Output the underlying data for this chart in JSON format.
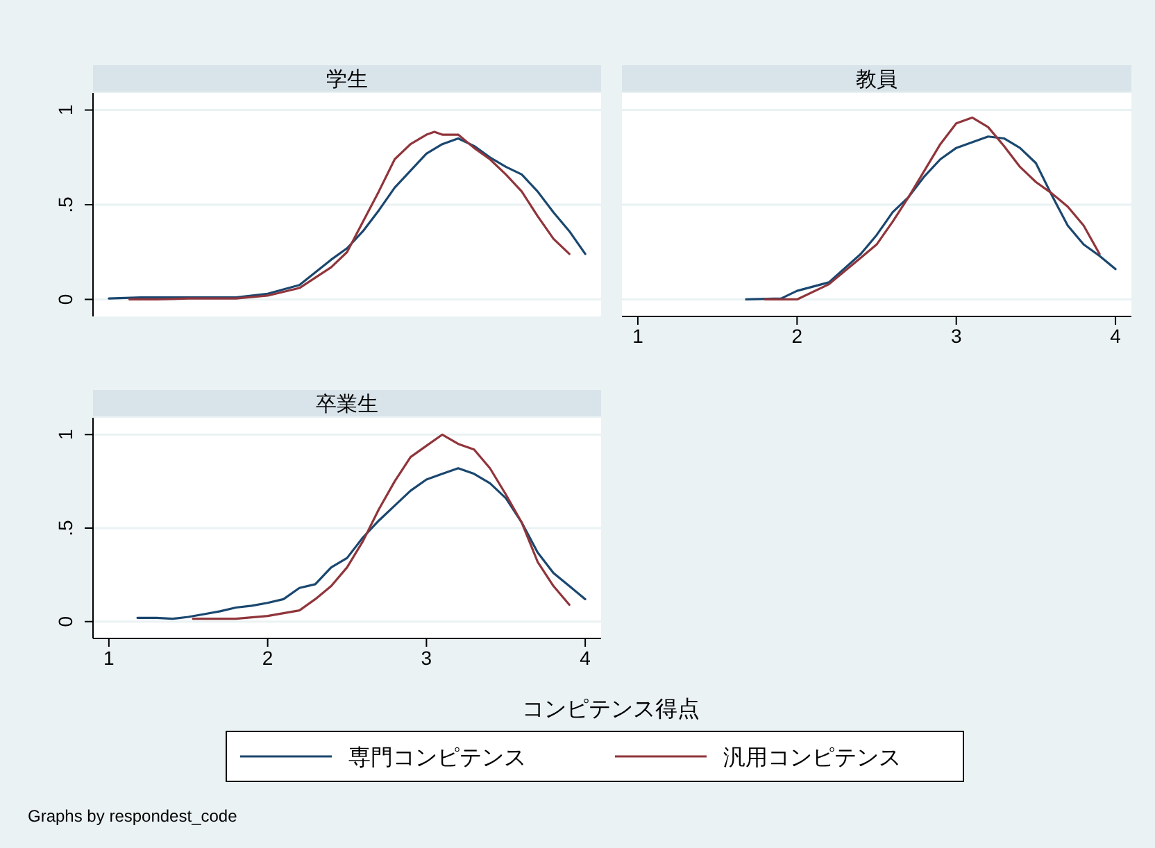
{
  "chart_data": [
    {
      "type": "line",
      "title": "学生",
      "xlim": [
        0.9,
        4.1
      ],
      "xticks": [
        1,
        2,
        3,
        4
      ],
      "ylim": [
        -0.09,
        1.09
      ],
      "yticks": [
        0,
        {
          "value": 0.5,
          "label": ".5"
        },
        1
      ],
      "grid": "y",
      "tick_labels": "y",
      "series": [
        {
          "color": "#1a476f",
          "x": [
            1.0,
            1.2,
            1.5,
            1.8,
            2.0,
            2.2,
            2.4,
            2.5,
            2.6,
            2.7,
            2.8,
            2.9,
            3.0,
            3.1,
            3.2,
            3.3,
            3.4,
            3.5,
            3.6,
            3.7,
            3.8,
            3.9,
            4.0
          ],
          "values": [
            0.005,
            0.01,
            0.01,
            0.01,
            0.03,
            0.076,
            0.21,
            0.27,
            0.36,
            0.47,
            0.59,
            0.68,
            0.77,
            0.82,
            0.85,
            0.81,
            0.75,
            0.7,
            0.66,
            0.57,
            0.46,
            0.36,
            0.24
          ]
        },
        {
          "color": "#90353b",
          "x": [
            1.13,
            1.3,
            1.5,
            1.8,
            2.0,
            2.2,
            2.4,
            2.5,
            2.6,
            2.7,
            2.8,
            2.9,
            3.0,
            3.05,
            3.1,
            3.2,
            3.3,
            3.4,
            3.5,
            3.6,
            3.7,
            3.8,
            3.9
          ],
          "values": [
            0.0,
            0.0,
            0.005,
            0.005,
            0.02,
            0.06,
            0.17,
            0.25,
            0.41,
            0.57,
            0.74,
            0.82,
            0.87,
            0.885,
            0.87,
            0.87,
            0.8,
            0.74,
            0.66,
            0.57,
            0.44,
            0.32,
            0.24
          ]
        }
      ]
    },
    {
      "type": "line",
      "title": "教員",
      "xlim": [
        0.9,
        4.1
      ],
      "xticks": [
        1,
        2,
        3,
        4
      ],
      "ylim": [
        -0.09,
        1.09
      ],
      "yticks": [
        0,
        0.5,
        1
      ],
      "grid": "y",
      "tick_labels": "x",
      "series": [
        {
          "color": "#1a476f",
          "x": [
            1.68,
            1.9,
            2.0,
            2.2,
            2.4,
            2.5,
            2.6,
            2.7,
            2.8,
            2.9,
            3.0,
            3.1,
            3.2,
            3.3,
            3.4,
            3.5,
            3.6,
            3.7,
            3.8,
            3.9,
            4.0
          ],
          "values": [
            0.0,
            0.005,
            0.045,
            0.09,
            0.24,
            0.34,
            0.46,
            0.54,
            0.65,
            0.74,
            0.8,
            0.83,
            0.86,
            0.85,
            0.8,
            0.72,
            0.55,
            0.39,
            0.29,
            0.23,
            0.16
          ]
        },
        {
          "color": "#90353b",
          "x": [
            1.8,
            2.0,
            2.2,
            2.4,
            2.5,
            2.6,
            2.7,
            2.8,
            2.9,
            3.0,
            3.1,
            3.2,
            3.3,
            3.4,
            3.5,
            3.6,
            3.7,
            3.8,
            3.9
          ],
          "values": [
            0.0,
            0.0,
            0.08,
            0.22,
            0.29,
            0.41,
            0.54,
            0.68,
            0.82,
            0.93,
            0.96,
            0.91,
            0.81,
            0.7,
            0.62,
            0.56,
            0.49,
            0.39,
            0.24
          ]
        }
      ]
    },
    {
      "type": "line",
      "title": "卒業生",
      "xlabel": "コンピテンス得点",
      "xlim": [
        0.9,
        4.1
      ],
      "xticks": [
        1,
        2,
        3,
        4
      ],
      "ylim": [
        -0.09,
        1.09
      ],
      "yticks": [
        0,
        {
          "value": 0.5,
          "label": ".5"
        },
        1
      ],
      "grid": "y",
      "legend": "bottom",
      "annotations": [
        "Graphs by respondest_code"
      ],
      "series": [
        {
          "name": "専門コンピテンス",
          "color": "#1a476f",
          "x": [
            1.18,
            1.3,
            1.4,
            1.5,
            1.6,
            1.7,
            1.8,
            1.9,
            2.0,
            2.1,
            2.2,
            2.3,
            2.4,
            2.5,
            2.6,
            2.7,
            2.8,
            2.9,
            3.0,
            3.1,
            3.2,
            3.3,
            3.4,
            3.5,
            3.6,
            3.7,
            3.8,
            3.9,
            4.0
          ],
          "values": [
            0.02,
            0.02,
            0.015,
            0.025,
            0.04,
            0.055,
            0.075,
            0.085,
            0.1,
            0.12,
            0.18,
            0.2,
            0.29,
            0.34,
            0.45,
            0.54,
            0.62,
            0.7,
            0.76,
            0.79,
            0.82,
            0.79,
            0.74,
            0.66,
            0.53,
            0.37,
            0.26,
            0.19,
            0.12
          ]
        },
        {
          "name": "汎用コンピテンス",
          "color": "#90353b",
          "x": [
            1.53,
            1.8,
            2.0,
            2.2,
            2.3,
            2.4,
            2.5,
            2.6,
            2.7,
            2.8,
            2.9,
            3.0,
            3.1,
            3.2,
            3.3,
            3.4,
            3.5,
            3.6,
            3.7,
            3.8,
            3.9
          ],
          "values": [
            0.015,
            0.015,
            0.03,
            0.06,
            0.12,
            0.19,
            0.29,
            0.43,
            0.6,
            0.75,
            0.88,
            0.94,
            1.0,
            0.95,
            0.92,
            0.82,
            0.68,
            0.53,
            0.32,
            0.19,
            0.09
          ]
        }
      ]
    }
  ]
}
